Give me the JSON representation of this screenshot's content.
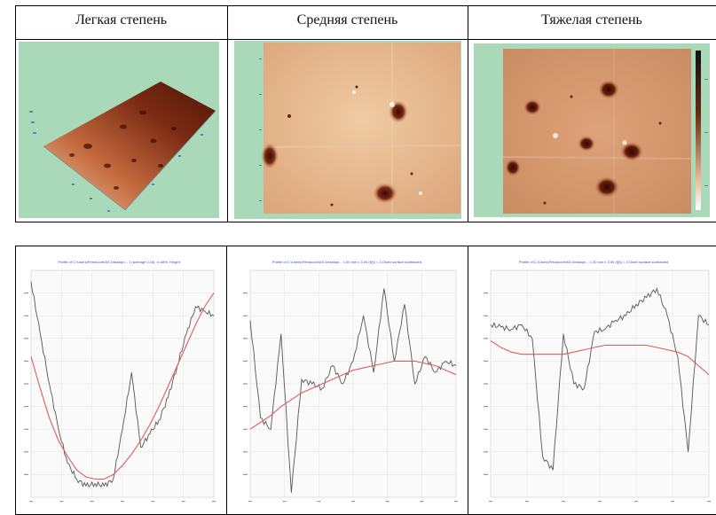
{
  "headers": [
    "Легкая степень",
    "Средняя степень",
    "Тяжелая степень"
  ],
  "colors": {
    "background_afm": "#a9d9b9",
    "surface_light": "#e9c49a",
    "surface_dark": "#5a1a08",
    "profile_line": "#555555",
    "fit_line": "#e05a5a",
    "title_text": "#3b49b8"
  },
  "images": [
    {
      "name": "afm-3d-mild"
    },
    {
      "name": "afm-2d-moderate"
    },
    {
      "name": "afm-2d-severe"
    }
  ],
  "chart_data": [
    {
      "type": "line",
      "series": [
        {
          "values": [
            95,
            72,
            50,
            30,
            15,
            8,
            5,
            6,
            5,
            8,
            30,
            55,
            22,
            28,
            34,
            44,
            58,
            72,
            84,
            82,
            80
          ]
        },
        {
          "values": [
            62,
            48,
            35,
            25,
            18,
            12,
            9,
            8,
            8,
            10,
            14,
            19,
            25,
            32,
            40,
            49,
            58,
            67,
            76,
            84,
            90
          ]
        }
      ]
    },
    {
      "type": "line",
      "series": [
        {
          "values": [
            78,
            35,
            30,
            72,
            2,
            52,
            50,
            48,
            58,
            50,
            60,
            80,
            55,
            92,
            60,
            85,
            50,
            62,
            55,
            60,
            58
          ]
        },
        {
          "values": [
            30,
            33,
            36,
            40,
            43,
            46,
            48,
            50,
            52,
            54,
            56,
            57,
            58,
            59,
            60,
            60,
            60,
            59,
            58,
            56,
            54
          ]
        }
      ]
    },
    {
      "type": "line",
      "series": [
        {
          "values": [
            76,
            75,
            74,
            76,
            70,
            18,
            12,
            72,
            50,
            48,
            73,
            74,
            78,
            80,
            85,
            88,
            92,
            80,
            62,
            20,
            80,
            76
          ]
        },
        {
          "values": [
            69,
            66,
            64,
            63,
            63,
            63,
            63,
            63,
            64,
            65,
            66,
            67,
            67,
            67,
            67,
            67,
            66,
            65,
            64,
            62,
            58,
            54
          ]
        }
      ]
    }
  ]
}
